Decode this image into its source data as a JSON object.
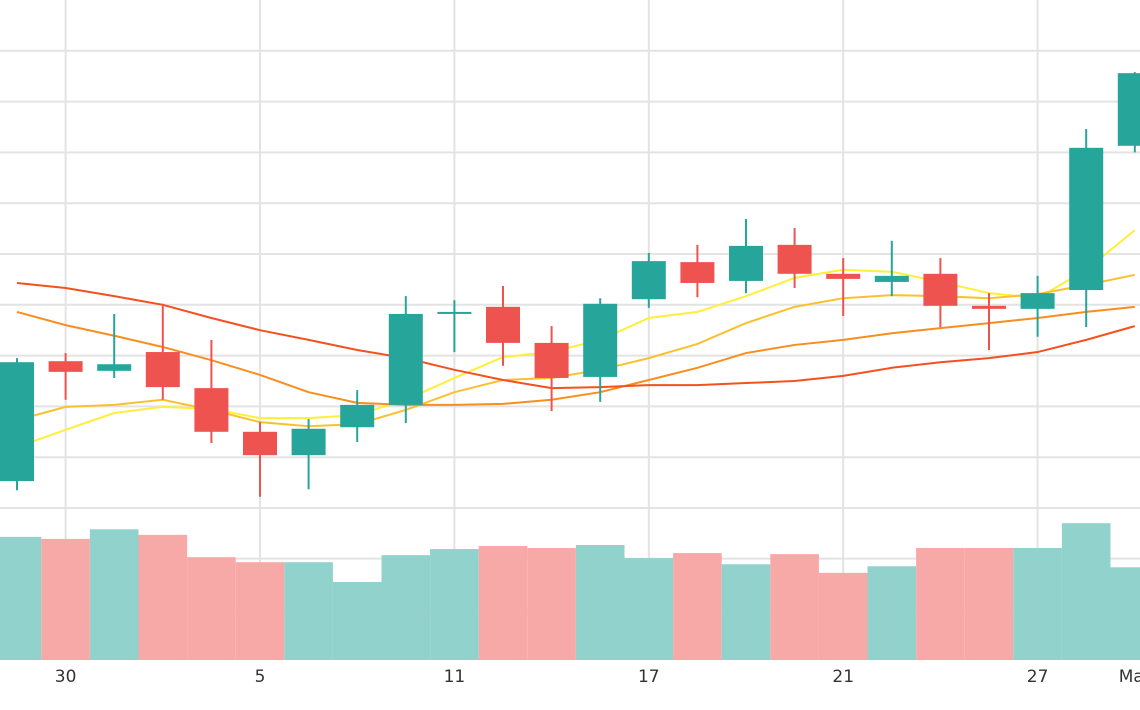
{
  "chart_data": {
    "type": "candlestick",
    "categories": [
      null,
      "30",
      null,
      null,
      null,
      "5",
      null,
      null,
      null,
      "11",
      null,
      null,
      null,
      "17",
      null,
      null,
      null,
      "21",
      null,
      null,
      null,
      "27",
      null,
      "Mar"
    ],
    "open": [
      0.53,
      2.89,
      2.7,
      3.07,
      2.36,
      1.5,
      1.04,
      1.59,
      2.03,
      3.82,
      3.96,
      3.25,
      2.58,
      4.11,
      4.84,
      4.47,
      5.18,
      4.61,
      4.45,
      4.61,
      3.98,
      3.92,
      4.29,
      7.13
    ],
    "high": [
      2.95,
      3.05,
      3.82,
      4.02,
      3.31,
      1.69,
      1.75,
      2.32,
      4.17,
      4.09,
      4.37,
      3.58,
      4.13,
      5.02,
      5.18,
      5.69,
      5.51,
      4.92,
      5.26,
      4.92,
      4.23,
      4.57,
      7.46,
      8.58
    ],
    "low": [
      0.35,
      2.13,
      2.56,
      2.13,
      1.28,
      0.22,
      0.37,
      1.3,
      1.67,
      3.07,
      2.8,
      1.91,
      2.09,
      3.94,
      4.15,
      4.23,
      4.33,
      3.78,
      4.17,
      3.56,
      3.11,
      3.37,
      3.56,
      7.0
    ],
    "close": [
      2.87,
      2.68,
      2.83,
      2.38,
      1.5,
      1.04,
      1.56,
      2.03,
      3.82,
      3.86,
      3.25,
      2.56,
      4.02,
      4.86,
      4.43,
      5.16,
      4.61,
      4.51,
      4.57,
      3.98,
      3.92,
      4.23,
      7.09,
      8.56
    ],
    "up_color": "#26a69a",
    "down_color": "#ef5350",
    "ylim": [
      0,
      10
    ],
    "yticks": [
      1,
      2,
      3,
      4,
      5,
      6,
      7,
      8,
      9
    ],
    "grid": true,
    "moving_averages": [
      {
        "color": "#ffee3a",
        "values": [
          1.2,
          1.54,
          1.87,
          1.99,
          1.95,
          1.77,
          1.77,
          1.83,
          2.13,
          2.56,
          2.97,
          3.07,
          3.31,
          3.74,
          3.86,
          4.17,
          4.53,
          4.69,
          4.65,
          4.45,
          4.23,
          4.13,
          4.69,
          5.47
        ]
      },
      {
        "color": "#fbc02d",
        "values": [
          1.73,
          1.99,
          2.03,
          2.13,
          1.93,
          1.69,
          1.61,
          1.65,
          1.93,
          2.28,
          2.52,
          2.56,
          2.72,
          2.95,
          3.23,
          3.64,
          3.96,
          4.13,
          4.19,
          4.17,
          4.13,
          4.21,
          4.39,
          4.59
        ]
      },
      {
        "color": "#f98d1e",
        "values": [
          3.86,
          3.6,
          3.39,
          3.17,
          2.91,
          2.62,
          2.28,
          2.07,
          2.03,
          2.03,
          2.05,
          2.13,
          2.28,
          2.52,
          2.76,
          3.05,
          3.21,
          3.31,
          3.44,
          3.54,
          3.64,
          3.74,
          3.86,
          3.96
        ]
      },
      {
        "color": "#f4511e",
        "values": [
          4.43,
          4.33,
          4.17,
          4.0,
          3.74,
          3.5,
          3.31,
          3.11,
          2.95,
          2.72,
          2.52,
          2.36,
          2.38,
          2.42,
          2.42,
          2.46,
          2.5,
          2.6,
          2.76,
          2.87,
          2.95,
          3.07,
          3.31,
          3.58
        ]
      }
    ],
    "volume": {
      "values": [
        2.43,
        2.39,
        2.58,
        2.47,
        2.03,
        1.93,
        1.93,
        1.54,
        2.07,
        2.19,
        2.25,
        2.21,
        2.27,
        2.01,
        2.11,
        1.89,
        2.09,
        1.72,
        1.85,
        2.21,
        2.21,
        2.21,
        2.7,
        1.83
      ],
      "up_color": "#92d2cc",
      "down_color": "#f7a9a7",
      "ylim": [
        0,
        3
      ],
      "yticks": [
        1,
        2
      ]
    }
  }
}
